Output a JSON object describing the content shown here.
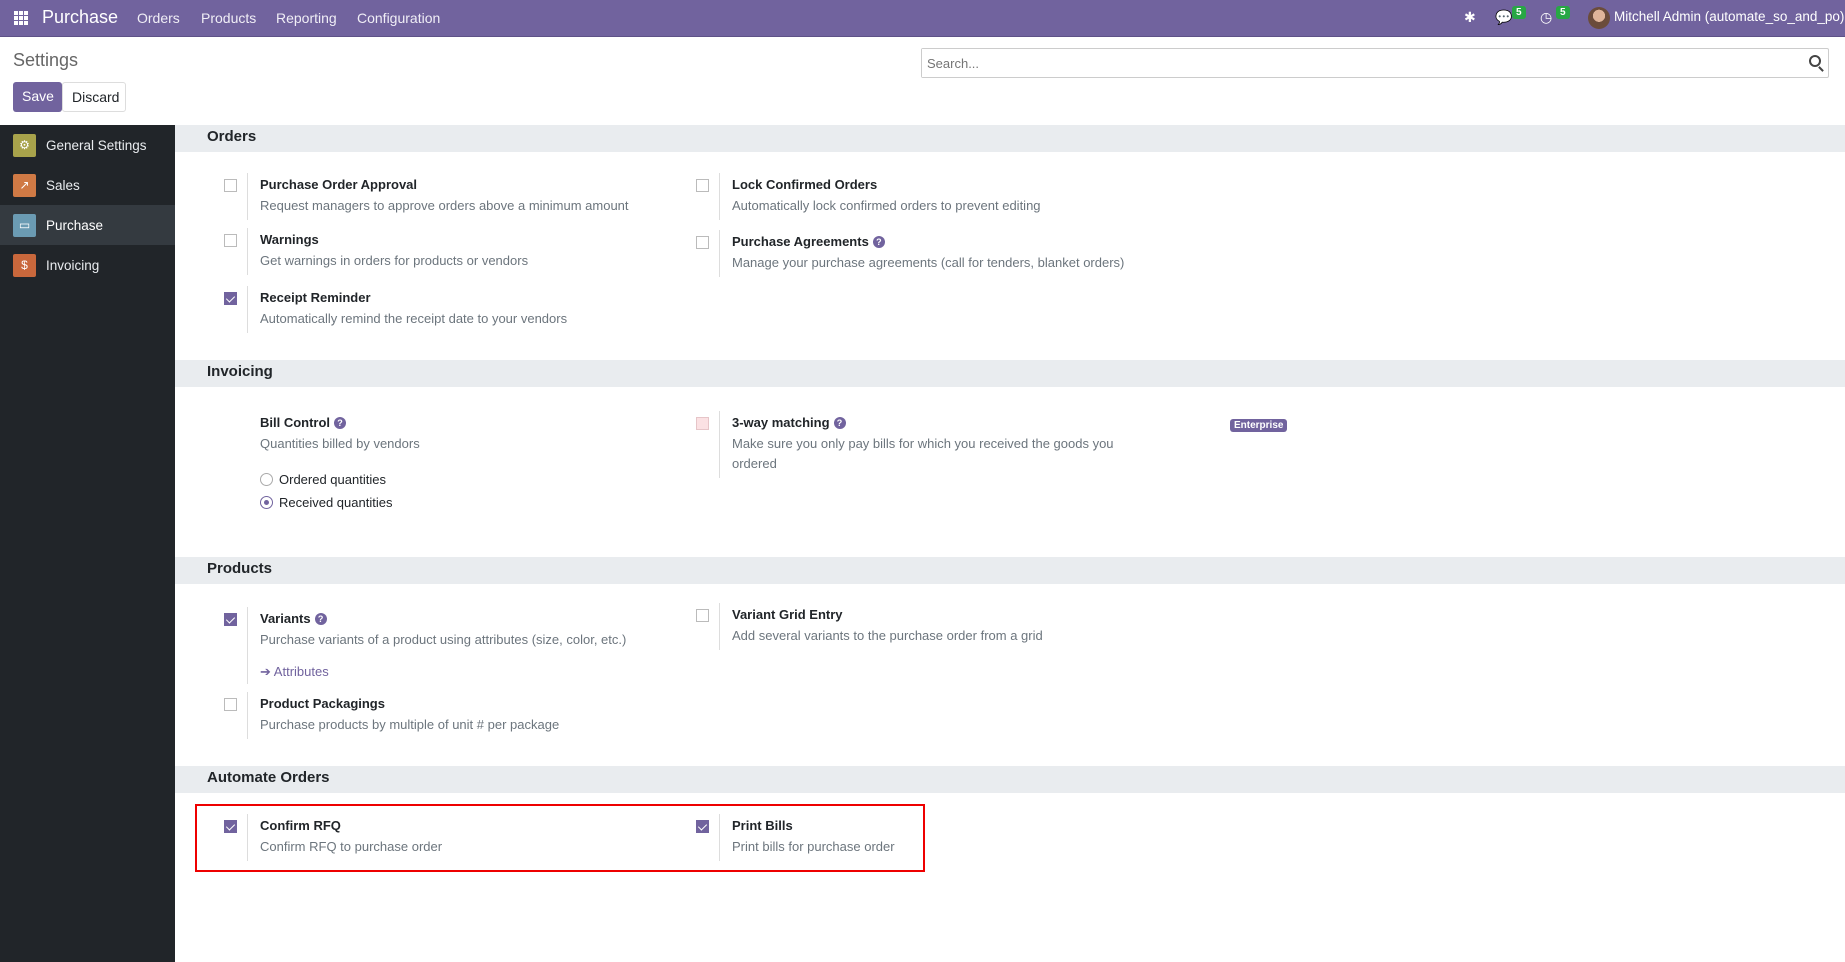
{
  "navbar": {
    "app": "Purchase",
    "menus": [
      "Orders",
      "Products",
      "Reporting",
      "Configuration"
    ],
    "messages_count": "5",
    "activities_count": "5",
    "user": "Mitchell Admin (automate_so_and_po)",
    "color": "#71639e"
  },
  "page": {
    "title": "Settings",
    "save": "Save",
    "discard": "Discard",
    "search_placeholder": "Search..."
  },
  "sidebar": [
    {
      "label": "General Settings",
      "icon": "gear-icon"
    },
    {
      "label": "Sales",
      "icon": "chart-icon"
    },
    {
      "label": "Purchase",
      "icon": "card-icon",
      "active": true
    },
    {
      "label": "Invoicing",
      "icon": "invoice-icon"
    }
  ],
  "sections": {
    "orders": {
      "title": "Orders",
      "items": [
        {
          "title": "Purchase Order Approval",
          "desc": "Request managers to approve orders above a minimum amount",
          "checked": false
        },
        {
          "title": "Lock Confirmed Orders",
          "desc": "Automatically lock confirmed orders to prevent editing",
          "checked": false
        },
        {
          "title": "Warnings",
          "desc": "Get warnings in orders for products or vendors",
          "checked": false
        },
        {
          "title": "Purchase Agreements",
          "desc": "Manage your purchase agreements (call for tenders, blanket orders)",
          "checked": false
        },
        {
          "title": "Receipt Reminder",
          "desc": "Automatically remind the receipt date to your vendors",
          "checked": true
        }
      ]
    },
    "invoicing": {
      "title": "Invoicing",
      "bill_control": {
        "title": "Bill Control",
        "desc": "Quantities billed by vendors",
        "options": [
          "Ordered quantities",
          "Received quantities"
        ],
        "selected": "Received quantities"
      },
      "three_way": {
        "title": "3-way matching",
        "desc": "Make sure you only pay bills for which you received the goods you ordered",
        "badge": "Enterprise",
        "checked": false
      }
    },
    "products": {
      "title": "Products",
      "items": [
        {
          "title": "Variants",
          "desc": "Purchase variants of a product using attributes (size, color, etc.)",
          "link": "Attributes",
          "checked": true
        },
        {
          "title": "Variant Grid Entry",
          "desc": "Add several variants to the purchase order from a grid",
          "checked": false
        },
        {
          "title": "Product Packagings",
          "desc": "Purchase products by multiple of unit # per package",
          "checked": false
        }
      ]
    },
    "automate": {
      "title": "Automate Orders",
      "items": [
        {
          "title": "Confirm RFQ",
          "desc": "Confirm RFQ to purchase order",
          "checked": true
        },
        {
          "title": "Print Bills",
          "desc": "Print bills for purchase order",
          "checked": true
        }
      ]
    }
  }
}
